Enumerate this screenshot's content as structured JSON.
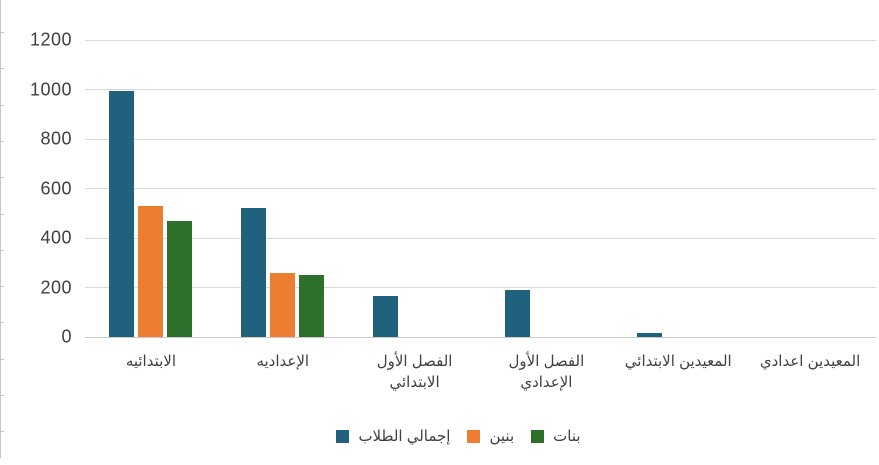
{
  "chart_data": {
    "type": "bar",
    "categories": [
      "الابتدائيه",
      "الإعداديه",
      "الفصل الأول\nالابتدائي",
      "الفصل الأول\nالإعدادي",
      "المعيدين الابتدائي",
      "المعيدين اعدادي"
    ],
    "series": [
      {
        "name": "إجمالي الطلاب",
        "color": "#20617E",
        "values": [
          995,
          520,
          165,
          190,
          15,
          0
        ]
      },
      {
        "name": "بنين",
        "color": "#ED7D31",
        "values": [
          530,
          260,
          0,
          0,
          0,
          0
        ]
      },
      {
        "name": "بنات",
        "color": "#2D702B",
        "values": [
          470,
          250,
          0,
          0,
          0,
          0
        ]
      }
    ],
    "title": "",
    "xlabel": "",
    "ylabel": "",
    "ylim": [
      0,
      1200
    ],
    "ytick_step": 200,
    "ytick_labels": [
      "0",
      "200",
      "400",
      "600",
      "800",
      "1000",
      "1200"
    ],
    "grid": true,
    "legend_position": "bottom",
    "text_direction": "rtl"
  },
  "colors": {
    "background": "#FFFFFF",
    "gridline": "#D9D9D9",
    "zero_line": "#CBCBCB",
    "axis_text": "#404040",
    "sheet_ruler": "#C4C4C4"
  }
}
